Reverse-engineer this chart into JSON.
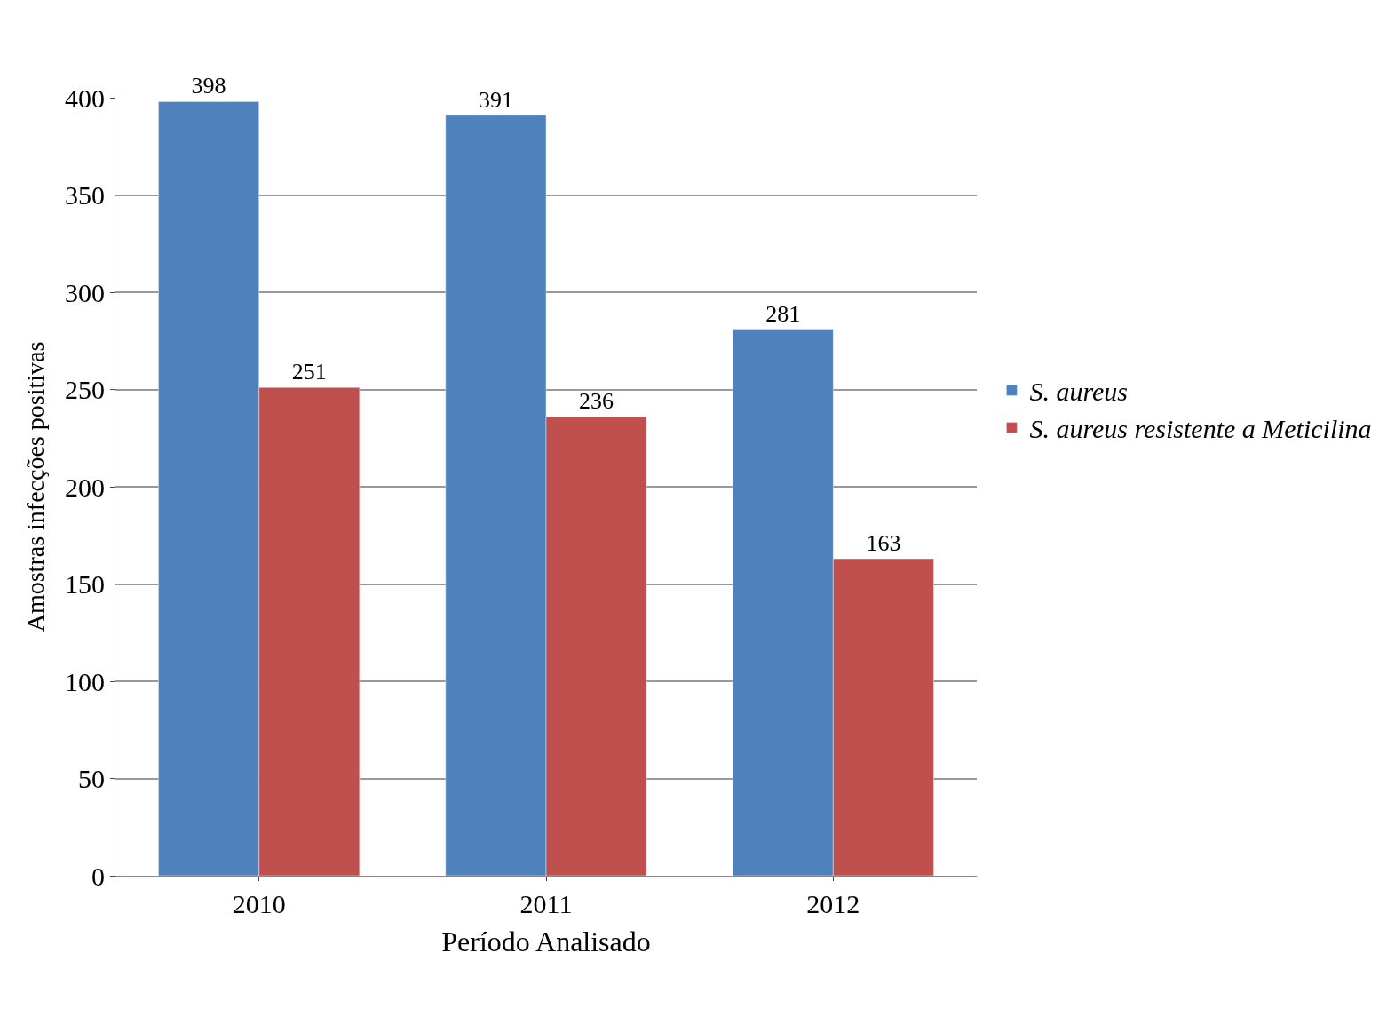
{
  "chart_data": {
    "type": "bar",
    "xlabel": "Período Analisado",
    "ylabel": "Amostras infecções positivas",
    "categories": [
      "2010",
      "2011",
      "2012"
    ],
    "series": [
      {
        "name": "S. aureus",
        "color": "#4f81bd",
        "values": [
          398,
          391,
          281
        ]
      },
      {
        "name": "S. aureus resistente a Meticilina",
        "color": "#c0504d",
        "values": [
          251,
          236,
          163
        ]
      }
    ],
    "ylim": [
      0,
      400
    ],
    "yticks": [
      0,
      50,
      100,
      150,
      200,
      250,
      300,
      350,
      400
    ],
    "grid": "y",
    "legend": "right",
    "data_labels": true
  }
}
